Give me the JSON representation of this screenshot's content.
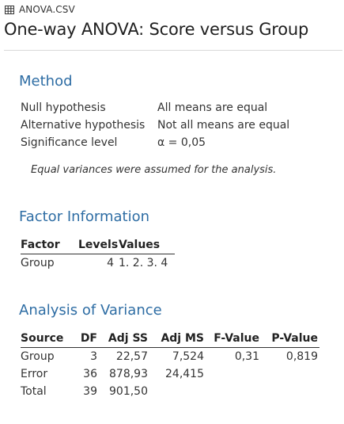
{
  "file": {
    "name": "ANOVA.CSV",
    "icon": "table-grid-icon"
  },
  "title": "One-way ANOVA: Score versus Group",
  "method": {
    "heading": "Method",
    "rows": [
      {
        "label": "Null hypothesis",
        "value": "All means are equal"
      },
      {
        "label": "Alternative hypothesis",
        "value": "Not all means are equal"
      },
      {
        "label": "Significance level",
        "value": "α = 0,05"
      }
    ],
    "note": "Equal variances were assumed for the analysis."
  },
  "factor": {
    "heading": "Factor Information",
    "headers": [
      "Factor",
      "Levels",
      "Values"
    ],
    "rows": [
      {
        "factor": "Group",
        "levels": "4",
        "values": "1. 2. 3. 4"
      }
    ]
  },
  "anova": {
    "heading": "Analysis of Variance",
    "headers": [
      "Source",
      "DF",
      "Adj SS",
      "Adj MS",
      "F-Value",
      "P-Value"
    ],
    "rows": [
      {
        "source": "Group",
        "df": "3",
        "adj_ss": "22,57",
        "adj_ms": "7,524",
        "f": "0,31",
        "p": "0,819"
      },
      {
        "source": "Error",
        "df": "36",
        "adj_ss": "878,93",
        "adj_ms": "24,415",
        "f": "",
        "p": ""
      },
      {
        "source": "Total",
        "df": "39",
        "adj_ss": "901,50",
        "adj_ms": "",
        "f": "",
        "p": ""
      }
    ]
  }
}
